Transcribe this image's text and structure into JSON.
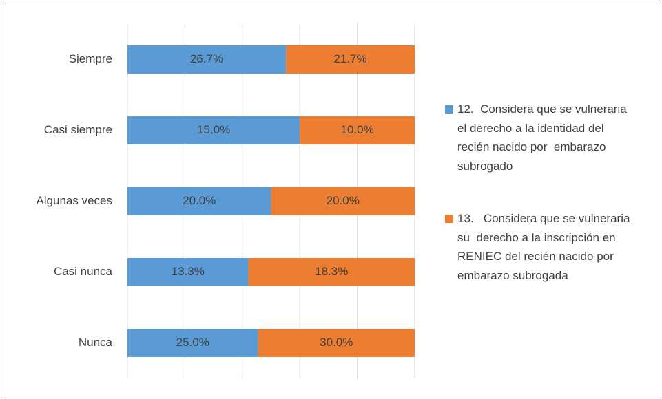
{
  "chart_data": {
    "type": "bar",
    "orientation": "horizontal",
    "stacking": "percent",
    "categories": [
      "Siempre",
      "Casi siempre",
      "Algunas veces",
      "Casi nunca",
      "Nunca"
    ],
    "series": [
      {
        "name": "12.  Considera que se vulneraria  el derecho a la identidad del recién nacido por  embarazo subrogado",
        "color": "#5B9BD5",
        "values": [
          26.7,
          15.0,
          20.0,
          13.3,
          25.0
        ],
        "value_labels": [
          "26.7%",
          "15.0%",
          "20.0%",
          "13.3%",
          "25.0%"
        ]
      },
      {
        "name": "13.   Considera que se vulneraria su  derecho a la inscripción en RENIEC del recién nacido por  embarazo subrogada",
        "color": "#ED7D31",
        "values": [
          21.7,
          10.0,
          20.0,
          18.3,
          30.0
        ],
        "value_labels": [
          "21.7%",
          "10.0%",
          "20.0%",
          "18.3%",
          "30.0%"
        ]
      }
    ],
    "xlim": [
      0,
      100
    ],
    "xticks": [
      0,
      20,
      40,
      60,
      80,
      100
    ],
    "show_tick_labels": false,
    "grid": true,
    "legend": "right"
  }
}
